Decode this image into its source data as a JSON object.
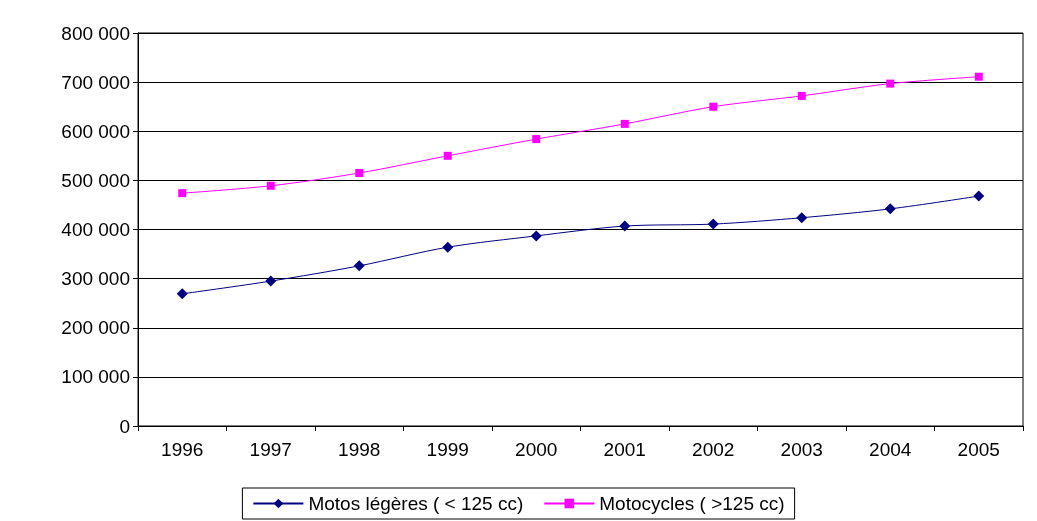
{
  "chart_data": {
    "type": "line",
    "categories": [
      "1996",
      "1997",
      "1998",
      "1999",
      "2000",
      "2001",
      "2002",
      "2003",
      "2004",
      "2005"
    ],
    "series": [
      {
        "name": "Motos légères ( < 125 cc)",
        "color": "#000080",
        "marker": "diamond",
        "values": [
          269000,
          295000,
          326000,
          364000,
          387000,
          407000,
          411000,
          424000,
          442000,
          468000
        ]
      },
      {
        "name": "Motocycles ( >125 cc)",
        "color": "#ff00ff",
        "marker": "square",
        "values": [
          474000,
          489000,
          515000,
          550000,
          584000,
          615000,
          650000,
          672000,
          697000,
          711000
        ]
      }
    ],
    "ylim": [
      0,
      800000
    ],
    "yticks": [
      {
        "value": 0,
        "label": "0"
      },
      {
        "value": 100000,
        "label": "100 000"
      },
      {
        "value": 200000,
        "label": "200 000"
      },
      {
        "value": 300000,
        "label": "300 000"
      },
      {
        "value": 400000,
        "label": "400 000"
      },
      {
        "value": 500000,
        "label": "500 000"
      },
      {
        "value": 600000,
        "label": "600 000"
      },
      {
        "value": 700000,
        "label": "700 000"
      },
      {
        "value": 800000,
        "label": "800 000"
      }
    ],
    "grid": "y",
    "legend": "bottom",
    "line_style": "solid"
  }
}
